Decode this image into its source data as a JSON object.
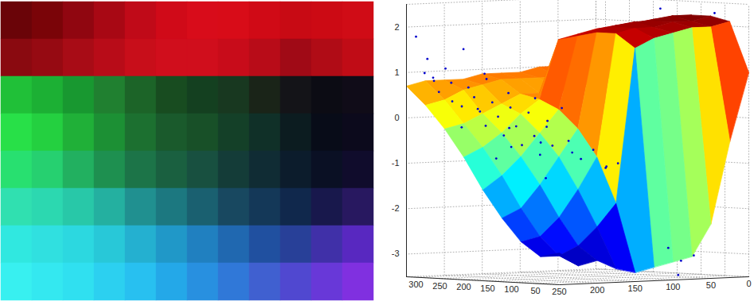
{
  "chart_data": [
    {
      "type": "image",
      "cells": [
        [
          "#6a0408",
          "#7a0408",
          "#900610",
          "#a80814",
          "#c00a18",
          "#d00a18",
          "#d80c1a",
          "#d80c18",
          "#d00a16",
          "#c80a14",
          "#cc0a14",
          "#d00c16"
        ],
        [
          "#8a0a10",
          "#960a12",
          "#a80c16",
          "#b80c18",
          "#c80e1a",
          "#d00e1c",
          "#d00e1c",
          "#c80c1a",
          "#b80c18",
          "#a00a16",
          "#b00c16",
          "#c00c16"
        ],
        [
          "#20c038",
          "#1cb034",
          "#189830",
          "#208030",
          "#1c6428",
          "#184c20",
          "#144020",
          "#183820",
          "#1a2418",
          "#141418",
          "#0c0c14",
          "#100c18"
        ],
        [
          "#28e048",
          "#24d040",
          "#20b038",
          "#1c9034",
          "#1c7030",
          "#1a5a2c",
          "#185028",
          "#144028",
          "#103028",
          "#0c1c20",
          "#080c18",
          "#0c0a1c"
        ],
        [
          "#28e070",
          "#26d070",
          "#22b060",
          "#1e9050",
          "#1c7448",
          "#1a6040",
          "#185040",
          "#143c38",
          "#102c34",
          "#0c1c2c",
          "#0a1024",
          "#100c2c"
        ],
        [
          "#30e0b0",
          "#2cd8b0",
          "#28c8a8",
          "#24b0a0",
          "#209090",
          "#1c7880",
          "#1a6070",
          "#184860",
          "#143858",
          "#10284c",
          "#18184c",
          "#281860"
        ],
        [
          "#30e8e0",
          "#30e0e0",
          "#2cd8e0",
          "#28c8d8",
          "#24b0d0",
          "#2098c8",
          "#2080c0",
          "#2068b0",
          "#2050a0",
          "#284098",
          "#4030a8",
          "#5828c0"
        ],
        [
          "#38f0f0",
          "#34e8f0",
          "#30e0f0",
          "#2cd0f0",
          "#28c0f0",
          "#24a8e8",
          "#2890e0",
          "#3078d8",
          "#4060d0",
          "#5048d0",
          "#6838d8",
          "#8030e0"
        ]
      ]
    },
    {
      "type": "surface3d",
      "x": [
        0,
        40,
        80,
        120,
        160,
        200,
        240,
        280,
        320
      ],
      "y": [
        0,
        25,
        50,
        75,
        100,
        125,
        150,
        175,
        200,
        225,
        250
      ],
      "z": [
        [
          1.0,
          2.1,
          2.2,
          2.2,
          2.1,
          2.0,
          0.9,
          1.0,
          1.0
        ],
        [
          -0.5,
          2.0,
          2.1,
          2.2,
          2.1,
          2.0,
          0.8,
          0.9,
          1.0
        ],
        [
          -2.3,
          2.0,
          2.1,
          2.1,
          2.0,
          1.9,
          0.7,
          0.9,
          1.0
        ],
        [
          -3.0,
          1.9,
          2.0,
          2.1,
          2.0,
          1.9,
          0.6,
          0.8,
          1.0
        ],
        [
          -3.1,
          1.8,
          2.0,
          2.0,
          1.9,
          1.8,
          0.5,
          0.8,
          0.9
        ],
        [
          -3.2,
          1.6,
          1.9,
          1.9,
          1.8,
          1.7,
          0.5,
          0.8,
          0.9
        ],
        [
          -3.3,
          -1.8,
          -0.8,
          -0.2,
          0.2,
          0.4,
          0.5,
          0.8,
          0.9
        ],
        [
          -3.2,
          -2.3,
          -1.5,
          -0.8,
          -0.3,
          0.1,
          0.3,
          0.7,
          0.8
        ],
        [
          -3.0,
          -2.7,
          -2.1,
          -1.4,
          -0.8,
          -0.3,
          0.1,
          0.6,
          0.8
        ],
        [
          -3.1,
          -2.9,
          -2.5,
          -1.9,
          -1.2,
          -0.6,
          -0.1,
          0.4,
          0.8
        ],
        [
          -2.8,
          -2.9,
          -2.6,
          -2.1,
          -1.5,
          -0.8,
          -0.2,
          0.3,
          0.7
        ]
      ],
      "xlim": [
        0,
        320
      ],
      "ylim": [
        0,
        250
      ],
      "zlim": [
        -3.5,
        2.5
      ],
      "xticks": [
        300,
        250,
        200,
        150,
        100,
        50
      ],
      "yticks": [
        250,
        200,
        150,
        100,
        50,
        0
      ],
      "zticks": [
        2,
        1,
        0,
        -1,
        -2,
        -3
      ],
      "grid": true,
      "series": [
        {
          "type": "scatter",
          "color": "#0000cc",
          "marker": "dot",
          "x": [
            300,
            290,
            280,
            310,
            270,
            260,
            250,
            240,
            230,
            220,
            210,
            200,
            190,
            180,
            170,
            160,
            150,
            140,
            130,
            120,
            110,
            100,
            90,
            80,
            70,
            60,
            50,
            40,
            30,
            20,
            250,
            200,
            150,
            100,
            60,
            260,
            180,
            120,
            10,
            15,
            5,
            20,
            90,
            40,
            300,
            280,
            170,
            130,
            90,
            220,
            60,
            140
          ],
          "y": [
            235,
            245,
            240,
            220,
            230,
            245,
            235,
            240,
            225,
            240,
            230,
            220,
            235,
            225,
            240,
            230,
            220,
            235,
            225,
            215,
            230,
            220,
            210,
            225,
            215,
            200,
            190,
            180,
            170,
            160,
            200,
            190,
            180,
            170,
            150,
            215,
            200,
            190,
            100,
            80,
            90,
            60,
            60,
            20,
            250,
            200,
            210,
            200,
            190,
            210,
            230,
            245
          ],
          "z": [
            1.3,
            1.0,
            0.9,
            0.8,
            1.1,
            0.6,
            0.8,
            0.4,
            0.7,
            0.3,
            0.5,
            0.9,
            0.2,
            0.4,
            -0.1,
            0.1,
            0.3,
            -0.3,
            -0.1,
            0.2,
            -0.5,
            -0.3,
            -0.1,
            -0.7,
            -0.5,
            -0.4,
            -0.8,
            -0.6,
            -1.0,
            -0.9,
            0.2,
            -0.2,
            -0.5,
            -0.7,
            -1.0,
            -0.2,
            -0.6,
            0.0,
            -2.8,
            -3.1,
            -3.4,
            -3.0,
            2.4,
            2.3,
            1.8,
            1.5,
            0.6,
            0.5,
            0.3,
            1.0,
            -1.2,
            -0.8
          ]
        }
      ]
    }
  ]
}
